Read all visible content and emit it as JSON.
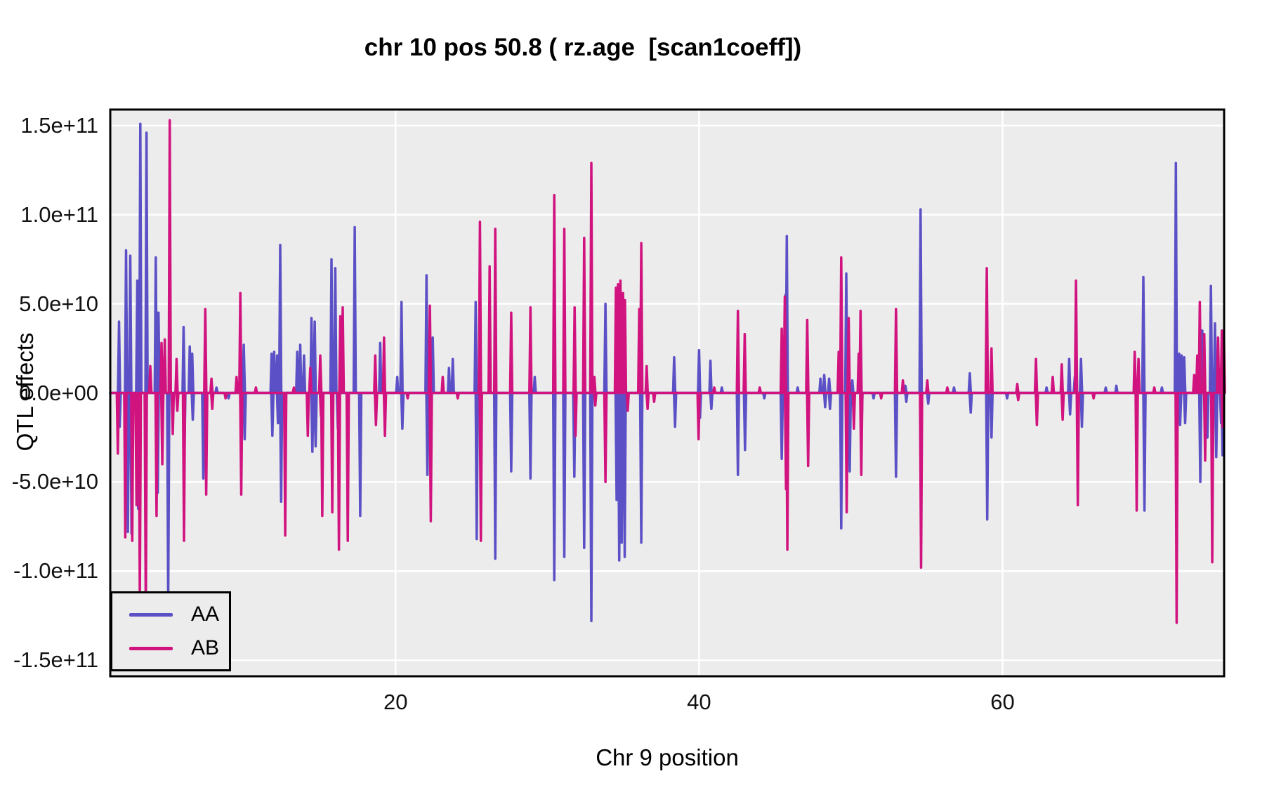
{
  "title": "chr 10 pos 50.8 ( rz.age  [scan1coeff])",
  "colors": {
    "panel_background": "#ECECEC",
    "gridline": "#FFFFFF",
    "panel_border": "#000000",
    "text": "#000000",
    "series_AA": "#5B50C5",
    "series_AB": "#D1137F"
  },
  "legend": {
    "entries": [
      {
        "label": "AA",
        "color": "#5B50C5"
      },
      {
        "label": "AB",
        "color": "#D1137F"
      }
    ],
    "position": "bottom-left inside panel"
  },
  "chart_data": {
    "type": "line",
    "title": "chr 10 pos 50.8 ( rz.age  [scan1coeff])",
    "xlabel": "Chr 9 position",
    "ylabel": "QTL effects",
    "xlim": [
      1.2,
      74.6
    ],
    "ylim": [
      -159000000000,
      159000000000
    ],
    "x_ticks": [
      20,
      40,
      60
    ],
    "y_ticks": [
      {
        "label": "1.5e+11",
        "value": 150000000000
      },
      {
        "label": "1.0e+11",
        "value": 100000000000
      },
      {
        "label": "5.0e+10",
        "value": 50000000000
      },
      {
        "label": "0.0e+00",
        "value": 0
      },
      {
        "label": "-5.0e+10",
        "value": -50000000000
      },
      {
        "label": "-1.0e+11",
        "value": -100000000000
      },
      {
        "label": "-1.5e+11",
        "value": -150000000000
      }
    ],
    "grid": "major only, white on gray panel",
    "legend_position": "bottom-left",
    "baseline": 0,
    "value_unit": 10000000000,
    "series": [
      {
        "name": "AA",
        "color": "#5B50C5",
        "spikes": [
          [
            1.78,
            4.0
          ],
          [
            1.82,
            -1.9
          ],
          [
            2.24,
            8.0
          ],
          [
            2.36,
            -7.8
          ],
          [
            2.52,
            7.7
          ],
          [
            2.6,
            -7.9
          ],
          [
            2.98,
            6.3
          ],
          [
            3.04,
            -6.5
          ],
          [
            3.18,
            15.1
          ],
          [
            3.59,
            14.6
          ],
          [
            4.2,
            7.6
          ],
          [
            4.33,
            -5.6
          ],
          [
            4.38,
            4.5
          ],
          [
            5.02,
            -11.6
          ],
          [
            6.03,
            3.7
          ],
          [
            6.08,
            -3.8
          ],
          [
            6.44,
            2.6
          ],
          [
            6.6,
            2.2
          ],
          [
            6.64,
            -1.5
          ],
          [
            7.33,
            -4.8
          ],
          [
            8.2,
            0.3
          ],
          [
            9.0,
            -0.3
          ],
          [
            10.0,
            2.7
          ],
          [
            10.06,
            -2.6
          ],
          [
            11.83,
            2.2
          ],
          [
            11.88,
            -2.4
          ],
          [
            12.0,
            2.3
          ],
          [
            12.2,
            2.1
          ],
          [
            12.25,
            -1.7
          ],
          [
            12.4,
            8.3
          ],
          [
            12.46,
            -6.1
          ],
          [
            13.52,
            2.3
          ],
          [
            13.72,
            2.7
          ],
          [
            13.97,
            2.1
          ],
          [
            14.46,
            4.2
          ],
          [
            14.52,
            -3.3
          ],
          [
            14.67,
            4.0
          ],
          [
            14.73,
            -3.0
          ],
          [
            15.78,
            7.5
          ],
          [
            16.03,
            7.0
          ],
          [
            16.2,
            -2.0
          ],
          [
            17.31,
            9.3
          ],
          [
            17.67,
            -6.9
          ],
          [
            18.99,
            2.8
          ],
          [
            20.11,
            0.9
          ],
          [
            20.39,
            5.1
          ],
          [
            20.45,
            -2.0
          ],
          [
            22.04,
            6.6
          ],
          [
            22.1,
            -4.6
          ],
          [
            22.45,
            3.1
          ],
          [
            23.52,
            1.4
          ],
          [
            23.77,
            1.9
          ],
          [
            25.28,
            5.1
          ],
          [
            25.35,
            -8.2
          ],
          [
            26.57,
            -9.3
          ],
          [
            27.62,
            -4.4
          ],
          [
            28.89,
            -4.8
          ],
          [
            29.17,
            0.9
          ],
          [
            30.46,
            -10.5
          ],
          [
            31.12,
            -9.2
          ],
          [
            31.78,
            -4.7
          ],
          [
            32.43,
            -8.7
          ],
          [
            32.9,
            -12.8
          ],
          [
            33.83,
            5.0
          ],
          [
            34.57,
            -6.0
          ],
          [
            34.74,
            -9.4
          ],
          [
            34.9,
            -8.4
          ],
          [
            35.1,
            -9.2
          ],
          [
            36.19,
            -8.4
          ],
          [
            38.36,
            2.0
          ],
          [
            38.42,
            -1.9
          ],
          [
            40.0,
            2.4
          ],
          [
            40.06,
            -1.4
          ],
          [
            40.75,
            1.8
          ],
          [
            40.81,
            -0.9
          ],
          [
            41.5,
            0.3
          ],
          [
            42.56,
            -4.6
          ],
          [
            43.03,
            -3.2
          ],
          [
            44.3,
            -0.3
          ],
          [
            45.45,
            -3.7
          ],
          [
            45.7,
            5.5
          ],
          [
            45.78,
            8.8
          ],
          [
            46.5,
            0.3
          ],
          [
            48.0,
            0.8
          ],
          [
            48.25,
            1.0
          ],
          [
            48.31,
            -0.8
          ],
          [
            48.57,
            0.8
          ],
          [
            48.63,
            -0.9
          ],
          [
            49.37,
            -7.6
          ],
          [
            49.7,
            6.7
          ],
          [
            49.93,
            -4.4
          ],
          [
            50.1,
            0.7
          ],
          [
            50.7,
            -2.1
          ],
          [
            51.5,
            -0.3
          ],
          [
            52.98,
            -4.7
          ],
          [
            53.6,
            0.4
          ],
          [
            53.66,
            -0.5
          ],
          [
            54.6,
            10.3
          ],
          [
            55.1,
            -0.6
          ],
          [
            56.8,
            0.3
          ],
          [
            57.84,
            1.1
          ],
          [
            57.9,
            -1.1
          ],
          [
            58.99,
            -7.1
          ],
          [
            59.27,
            -2.5
          ],
          [
            60.3,
            -0.3
          ],
          [
            62.9,
            0.3
          ],
          [
            64.39,
            1.9
          ],
          [
            64.45,
            -1.2
          ],
          [
            64.76,
            0.9
          ],
          [
            65.17,
            1.9
          ],
          [
            65.23,
            -1.9
          ],
          [
            66.8,
            0.3
          ],
          [
            67.5,
            0.4
          ],
          [
            69.28,
            6.5
          ],
          [
            69.35,
            -6.6
          ],
          [
            70.5,
            0.3
          ],
          [
            71.42,
            12.9
          ],
          [
            71.64,
            2.2
          ],
          [
            71.7,
            -1.8
          ],
          [
            71.8,
            2.1
          ],
          [
            71.97,
            2.0
          ],
          [
            72.03,
            -1.7
          ],
          [
            73.03,
            -5.0
          ],
          [
            73.16,
            3.5
          ],
          [
            73.5,
            -2.5
          ],
          [
            73.73,
            6.0
          ],
          [
            74.0,
            3.9
          ],
          [
            74.08,
            -3.6
          ],
          [
            74.35,
            1.2
          ],
          [
            74.4,
            -1.7
          ],
          [
            74.5,
            -3.5
          ],
          [
            74.55,
            2.4
          ]
        ]
      },
      {
        "name": "AB",
        "color": "#D1137F",
        "spikes": [
          [
            1.7,
            -3.4
          ],
          [
            2.19,
            -8.1
          ],
          [
            2.65,
            -8.3
          ],
          [
            2.93,
            -6.3
          ],
          [
            3.15,
            -11.5
          ],
          [
            3.54,
            -12.4
          ],
          [
            3.84,
            1.5
          ],
          [
            4.25,
            -6.9
          ],
          [
            4.58,
            2.8
          ],
          [
            4.63,
            -4.0
          ],
          [
            4.79,
            3.0
          ],
          [
            5.12,
            15.3
          ],
          [
            5.32,
            -2.3
          ],
          [
            5.57,
            1.9
          ],
          [
            5.62,
            -1.0
          ],
          [
            6.06,
            -8.3
          ],
          [
            7.46,
            4.7
          ],
          [
            7.52,
            -5.7
          ],
          [
            7.87,
            0.8
          ],
          [
            7.92,
            -0.9
          ],
          [
            8.8,
            -0.3
          ],
          [
            9.52,
            0.9
          ],
          [
            9.77,
            5.6
          ],
          [
            9.83,
            -5.7
          ],
          [
            10.8,
            0.3
          ],
          [
            12.73,
            -8.0
          ],
          [
            13.3,
            0.3
          ],
          [
            14.22,
            -2.4
          ],
          [
            14.38,
            1.4
          ],
          [
            15.04,
            2.1
          ],
          [
            15.09,
            -1.3
          ],
          [
            15.17,
            -6.9
          ],
          [
            15.83,
            -6.7
          ],
          [
            16.27,
            -8.8
          ],
          [
            16.36,
            4.3
          ],
          [
            16.52,
            4.8
          ],
          [
            16.85,
            -8.3
          ],
          [
            18.66,
            2.1
          ],
          [
            18.71,
            -1.8
          ],
          [
            19.24,
            3.1
          ],
          [
            19.3,
            -2.4
          ],
          [
            20.8,
            -0.3
          ],
          [
            22.26,
            4.9
          ],
          [
            22.32,
            -7.2
          ],
          [
            23.11,
            0.9
          ],
          [
            24.1,
            -0.3
          ],
          [
            25.56,
            9.6
          ],
          [
            25.62,
            -8.3
          ],
          [
            26.2,
            7.1
          ],
          [
            26.57,
            9.2
          ],
          [
            27.62,
            4.5
          ],
          [
            28.89,
            4.8
          ],
          [
            30.46,
            11.1
          ],
          [
            31.12,
            9.2
          ],
          [
            31.8,
            4.8
          ],
          [
            31.86,
            -2.4
          ],
          [
            32.43,
            8.7
          ],
          [
            32.9,
            12.9
          ],
          [
            33.1,
            0.9
          ],
          [
            33.16,
            -0.7
          ],
          [
            33.83,
            -5.0
          ],
          [
            34.52,
            5.9
          ],
          [
            34.66,
            6.1
          ],
          [
            34.82,
            6.3
          ],
          [
            34.99,
            5.6
          ],
          [
            35.12,
            5.2
          ],
          [
            35.3,
            -1.0
          ],
          [
            36.06,
            4.7
          ],
          [
            36.19,
            8.4
          ],
          [
            36.55,
            1.5
          ],
          [
            36.61,
            -0.9
          ],
          [
            37.04,
            -0.5
          ],
          [
            39.97,
            -2.6
          ],
          [
            41.0,
            0.3
          ],
          [
            42.56,
            4.6
          ],
          [
            43.01,
            3.3
          ],
          [
            44.0,
            0.3
          ],
          [
            45.45,
            3.6
          ],
          [
            45.65,
            5.4
          ],
          [
            45.73,
            -5.4
          ],
          [
            45.82,
            -8.8
          ],
          [
            47.13,
            4.1
          ],
          [
            47.19,
            -4.1
          ],
          [
            49.2,
            2.3
          ],
          [
            49.37,
            7.6
          ],
          [
            49.73,
            -6.7
          ],
          [
            49.86,
            4.2
          ],
          [
            50.2,
            -2.0
          ],
          [
            50.52,
            2.2
          ],
          [
            50.64,
            4.6
          ],
          [
            50.69,
            -4.6
          ],
          [
            52.0,
            -0.3
          ],
          [
            52.98,
            4.7
          ],
          [
            53.43,
            0.7
          ],
          [
            54.63,
            -9.8
          ],
          [
            55.04,
            0.7
          ],
          [
            56.36,
            0.3
          ],
          [
            58.96,
            7.0
          ],
          [
            59.27,
            2.5
          ],
          [
            60.97,
            0.5
          ],
          [
            61.03,
            -0.4
          ],
          [
            62.2,
            1.9
          ],
          [
            62.26,
            -1.8
          ],
          [
            63.31,
            0.9
          ],
          [
            63.9,
            1.6
          ],
          [
            63.96,
            -1.5
          ],
          [
            64.84,
            6.3
          ],
          [
            64.96,
            -6.3
          ],
          [
            66.0,
            -0.3
          ],
          [
            68.71,
            2.3
          ],
          [
            68.84,
            -6.6
          ],
          [
            68.96,
            1.9
          ],
          [
            70.0,
            0.3
          ],
          [
            71.47,
            -12.9
          ],
          [
            72.63,
            1.0
          ],
          [
            72.83,
            2.1
          ],
          [
            73.0,
            5.1
          ],
          [
            73.29,
            3.3
          ],
          [
            73.35,
            -3.8
          ],
          [
            73.82,
            -9.5
          ],
          [
            74.2,
            3.1
          ],
          [
            74.45,
            3.5
          ],
          [
            74.5,
            -1.9
          ],
          [
            74.58,
            3.4
          ]
        ]
      }
    ]
  }
}
